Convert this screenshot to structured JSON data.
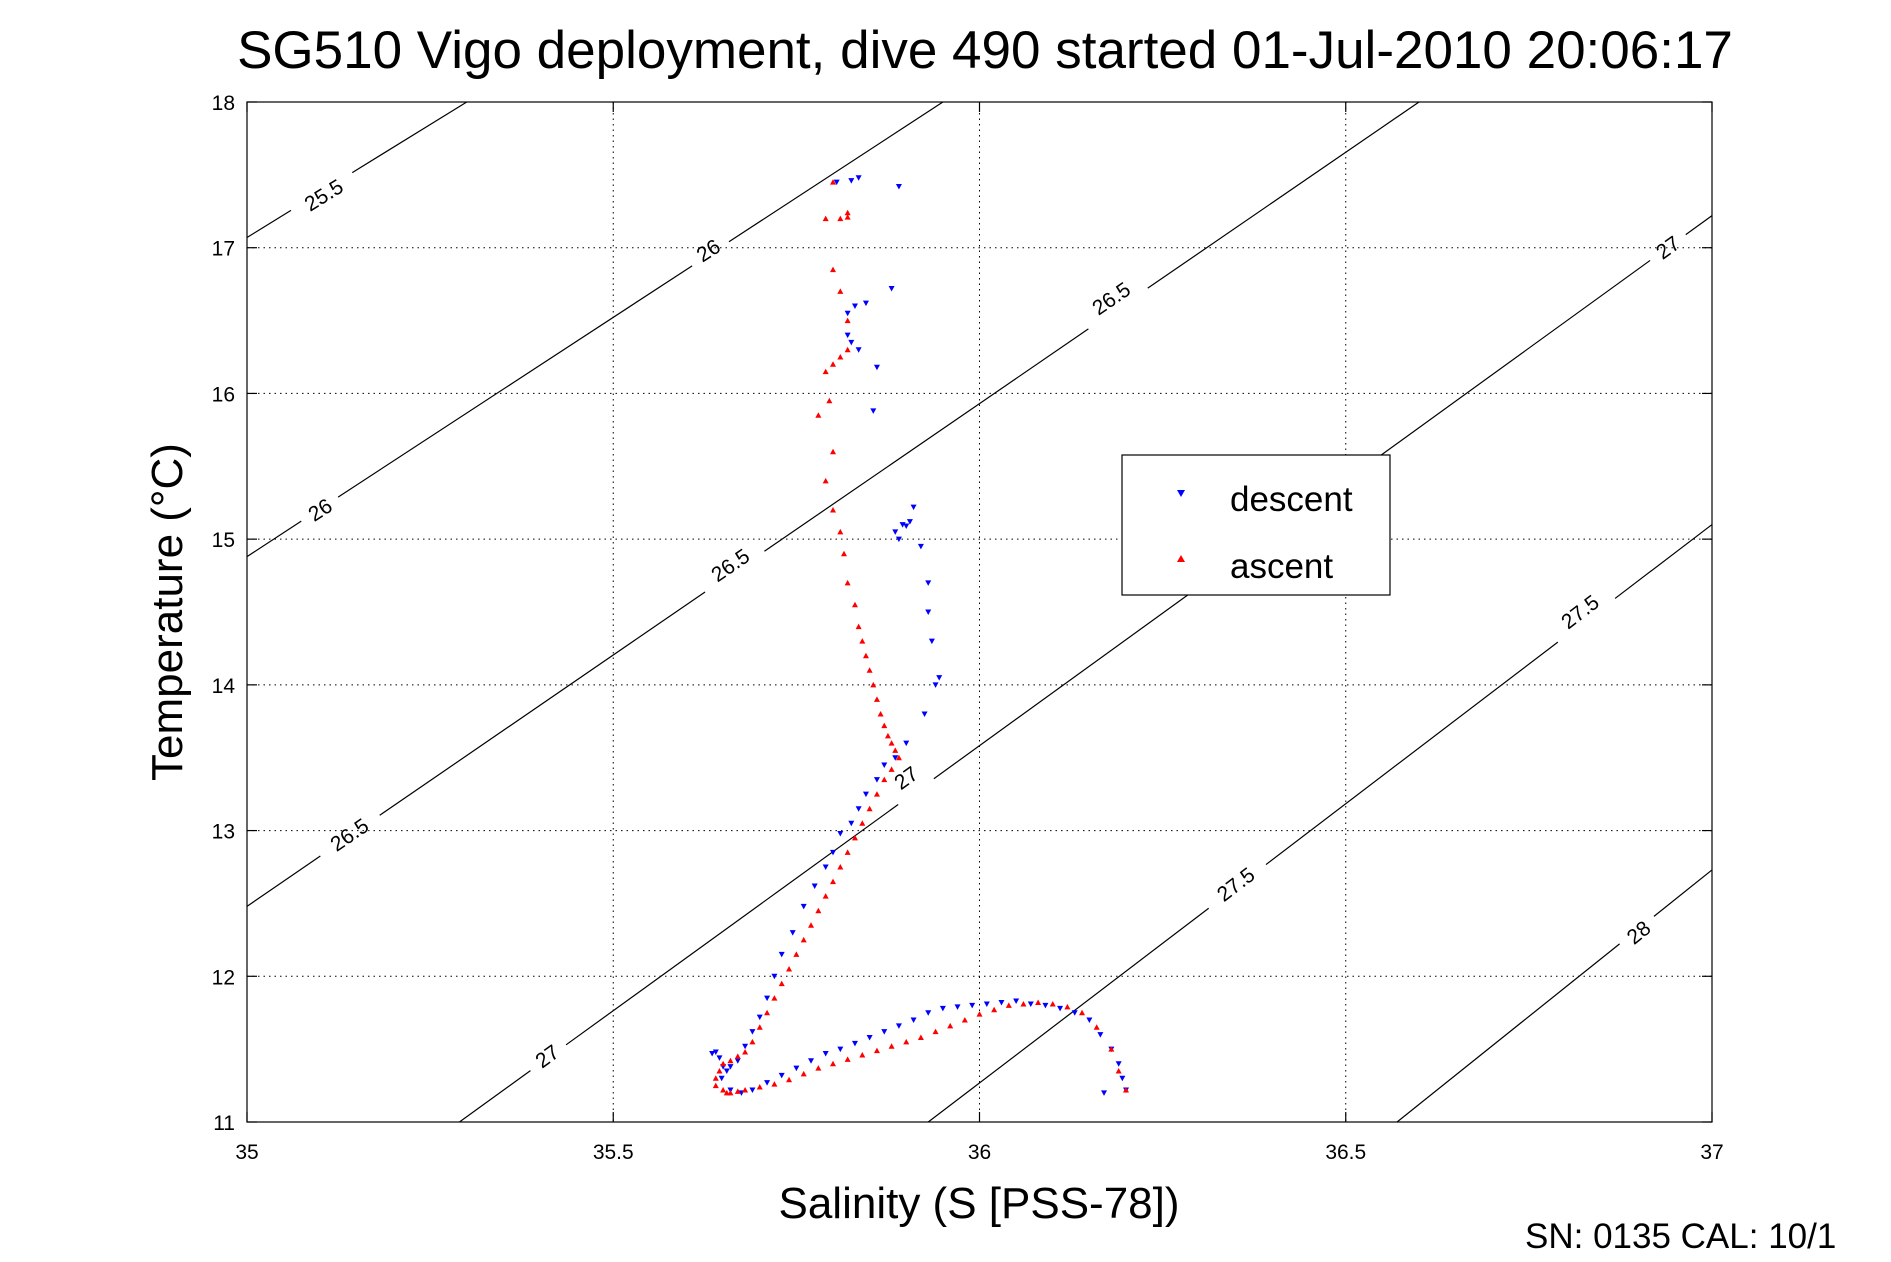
{
  "chart_data": {
    "type": "scatter",
    "title": "SG510 Vigo deployment, dive 490 started 01-Jul-2010 20:06:17",
    "xlabel": "Salinity (S [PSS-78])",
    "ylabel": "Temperature (°C)",
    "xlim": [
      35,
      37
    ],
    "ylim": [
      11,
      18
    ],
    "x_ticks": [
      "35",
      "35.5",
      "36",
      "36.5",
      "37"
    ],
    "y_ticks": [
      "11",
      "12",
      "13",
      "14",
      "15",
      "16",
      "17",
      "18"
    ],
    "grid": true,
    "legend_position": "right-center",
    "footer": "SN: 0135  CAL: 10/1",
    "colors": {
      "descent": "#0000ff",
      "ascent": "#ff0000",
      "contour": "#000000"
    },
    "contours": [
      {
        "level": "25.5",
        "points": [
          [
            35.0,
            17.07
          ],
          [
            35.3,
            18.0
          ]
        ],
        "labels": [
          [
            35.105,
            17.36
          ]
        ]
      },
      {
        "level": "26",
        "points": [
          [
            35.0,
            14.88
          ],
          [
            35.95,
            18.0
          ]
        ],
        "labels": [
          [
            35.1,
            15.2
          ],
          [
            35.63,
            16.98
          ]
        ]
      },
      {
        "level": "26.5",
        "points": [
          [
            35.0,
            12.48
          ],
          [
            36.6,
            18.0
          ]
        ],
        "labels": [
          [
            35.14,
            12.97
          ],
          [
            35.66,
            14.82
          ],
          [
            36.18,
            16.65
          ]
        ]
      },
      {
        "level": "27",
        "points": [
          [
            35.29,
            11.0
          ],
          [
            37.0,
            17.22
          ]
        ],
        "labels": [
          [
            35.41,
            11.45
          ],
          [
            35.9,
            13.36
          ],
          [
            36.94,
            17.0
          ]
        ]
      },
      {
        "level": "27.5",
        "points": [
          [
            35.93,
            11.0
          ],
          [
            37.0,
            15.1
          ]
        ],
        "labels": [
          [
            36.35,
            12.63
          ],
          [
            36.82,
            14.5
          ]
        ]
      },
      {
        "level": "28",
        "points": [
          [
            36.57,
            11.0
          ],
          [
            37.0,
            12.73
          ]
        ],
        "labels": [
          [
            36.9,
            12.3
          ]
        ]
      }
    ],
    "series": [
      {
        "name": "descent",
        "marker": "triangle-down",
        "x": [
          35.805,
          35.825,
          35.835,
          35.89,
          35.82,
          35.83,
          35.845,
          35.88,
          35.82,
          35.825,
          35.835,
          35.86,
          35.855,
          35.9,
          35.895,
          35.885,
          35.89,
          35.91,
          35.905,
          35.92,
          35.93,
          35.93,
          35.935,
          35.945,
          35.94,
          35.925,
          35.9,
          35.885,
          35.87,
          35.86,
          35.845,
          35.835,
          35.825,
          35.81,
          35.8,
          35.79,
          35.775,
          35.76,
          35.745,
          35.73,
          35.72,
          35.71,
          35.7,
          35.69,
          35.68,
          35.67,
          35.66,
          35.655,
          35.65,
          35.645,
          35.64,
          35.635,
          35.648,
          35.66,
          35.675,
          35.69,
          35.71,
          35.73,
          35.75,
          35.77,
          35.79,
          35.81,
          35.83,
          35.85,
          35.87,
          35.89,
          35.91,
          35.93,
          35.95,
          35.97,
          35.99,
          36.01,
          36.03,
          36.05,
          36.07,
          36.09,
          36.11,
          36.13,
          36.15,
          36.165,
          36.18,
          36.19,
          36.195,
          36.2,
          36.17
        ],
        "y": [
          17.45,
          17.46,
          17.48,
          17.42,
          16.55,
          16.6,
          16.62,
          16.72,
          16.4,
          16.35,
          16.3,
          16.18,
          15.88,
          15.09,
          15.1,
          15.05,
          15.0,
          15.22,
          15.12,
          14.95,
          14.7,
          14.5,
          14.3,
          14.05,
          14.0,
          13.8,
          13.6,
          13.5,
          13.45,
          13.35,
          13.25,
          13.15,
          13.05,
          12.98,
          12.85,
          12.75,
          12.62,
          12.48,
          12.3,
          12.15,
          12.0,
          11.85,
          11.72,
          11.62,
          11.52,
          11.42,
          11.38,
          11.35,
          11.38,
          11.44,
          11.48,
          11.47,
          11.3,
          11.22,
          11.2,
          11.22,
          11.27,
          11.32,
          11.37,
          11.42,
          11.47,
          11.5,
          11.54,
          11.58,
          11.62,
          11.66,
          11.7,
          11.75,
          11.78,
          11.79,
          11.8,
          11.81,
          11.82,
          11.83,
          11.81,
          11.8,
          11.78,
          11.75,
          11.7,
          11.6,
          11.5,
          11.4,
          11.3,
          11.22,
          11.2
        ]
      },
      {
        "name": "ascent",
        "marker": "triangle-up",
        "x": [
          35.8,
          35.81,
          35.82,
          35.82,
          35.79,
          35.8,
          35.81,
          35.82,
          35.82,
          35.81,
          35.8,
          35.79,
          35.795,
          35.78,
          35.8,
          35.79,
          35.8,
          35.81,
          35.815,
          35.82,
          35.83,
          35.835,
          35.84,
          35.845,
          35.85,
          35.855,
          35.86,
          35.865,
          35.87,
          35.875,
          35.88,
          35.885,
          35.89,
          35.88,
          35.87,
          35.86,
          35.85,
          35.84,
          35.83,
          35.82,
          35.81,
          35.8,
          35.79,
          35.78,
          35.77,
          35.76,
          35.75,
          35.74,
          35.73,
          35.72,
          35.71,
          35.7,
          35.69,
          35.68,
          35.67,
          35.66,
          35.65,
          35.645,
          35.64,
          35.64,
          35.65,
          35.655,
          35.66,
          35.67,
          35.68,
          35.7,
          35.72,
          35.74,
          35.76,
          35.78,
          35.8,
          35.82,
          35.84,
          35.86,
          35.88,
          35.9,
          35.92,
          35.94,
          35.96,
          35.98,
          36.0,
          36.02,
          36.04,
          36.06,
          36.08,
          36.1,
          36.12,
          36.14,
          36.16,
          36.18,
          36.19,
          36.2
        ],
        "y": [
          17.45,
          17.2,
          17.24,
          17.21,
          17.2,
          16.85,
          16.7,
          16.5,
          16.3,
          16.25,
          16.2,
          16.15,
          15.95,
          15.85,
          15.6,
          15.4,
          15.2,
          15.05,
          14.9,
          14.7,
          14.55,
          14.4,
          14.3,
          14.2,
          14.1,
          14.0,
          13.9,
          13.8,
          13.72,
          13.65,
          13.6,
          13.55,
          13.5,
          13.42,
          13.35,
          13.25,
          13.15,
          13.05,
          12.95,
          12.85,
          12.75,
          12.65,
          12.55,
          12.45,
          12.35,
          12.25,
          12.15,
          12.05,
          11.95,
          11.85,
          11.75,
          11.65,
          11.55,
          11.48,
          11.45,
          11.42,
          11.4,
          11.35,
          11.3,
          11.25,
          11.22,
          11.2,
          11.2,
          11.21,
          11.22,
          11.24,
          11.26,
          11.29,
          11.33,
          11.37,
          11.4,
          11.43,
          11.46,
          11.49,
          11.52,
          11.55,
          11.58,
          11.62,
          11.66,
          11.7,
          11.74,
          11.77,
          11.8,
          11.81,
          11.82,
          11.81,
          11.79,
          11.75,
          11.65,
          11.5,
          11.35,
          11.22
        ]
      }
    ]
  }
}
